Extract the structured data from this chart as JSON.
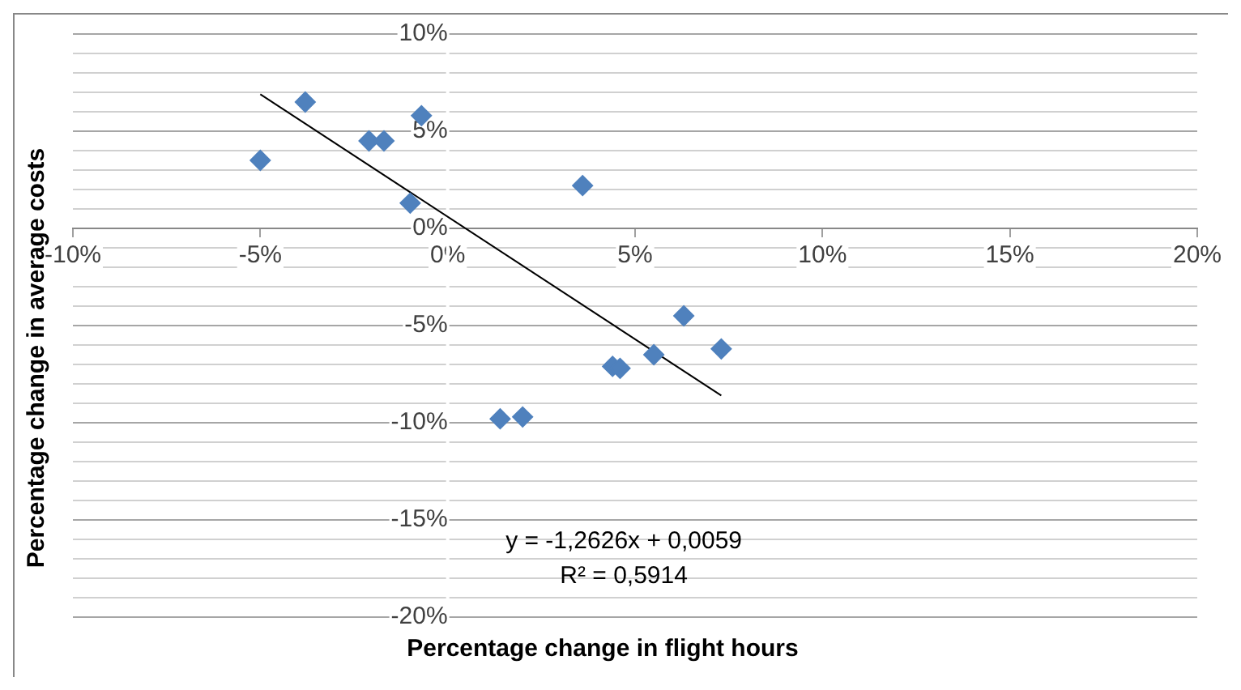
{
  "chart_data": {
    "type": "scatter",
    "xlabel": "Percentage change in flight hours",
    "ylabel": "Percentage change in average costs",
    "annotations": [
      "y = -1,2626x + 0,0059",
      "R² = 0,5914"
    ],
    "xlim": [
      -10,
      20
    ],
    "xticks": [
      {
        "value": -10,
        "label": "-10%"
      },
      {
        "value": -5,
        "label": "-5%"
      },
      {
        "value": 0,
        "label": "0%"
      },
      {
        "value": 5,
        "label": "5%"
      },
      {
        "value": 10,
        "label": "10%"
      },
      {
        "value": 15,
        "label": "15%"
      },
      {
        "value": 20,
        "label": "20%"
      }
    ],
    "ylim": [
      -20,
      10
    ],
    "yticks": [
      {
        "value": -20,
        "label": "-20%"
      },
      {
        "value": -19,
        "label": null
      },
      {
        "value": -18,
        "label": null
      },
      {
        "value": -17,
        "label": null
      },
      {
        "value": -16,
        "label": null
      },
      {
        "value": -15,
        "label": "-15%"
      },
      {
        "value": -14,
        "label": null
      },
      {
        "value": -13,
        "label": null
      },
      {
        "value": -12,
        "label": null
      },
      {
        "value": -11,
        "label": null
      },
      {
        "value": -10,
        "label": "-10%"
      },
      {
        "value": -9,
        "label": null
      },
      {
        "value": -8,
        "label": null
      },
      {
        "value": -7,
        "label": null
      },
      {
        "value": -6,
        "label": null
      },
      {
        "value": -5,
        "label": "-5%"
      },
      {
        "value": -4,
        "label": null
      },
      {
        "value": -3,
        "label": null
      },
      {
        "value": -2,
        "label": null
      },
      {
        "value": -1,
        "label": null
      },
      {
        "value": 0,
        "label": "0%"
      },
      {
        "value": 1,
        "label": null
      },
      {
        "value": 2,
        "label": null
      },
      {
        "value": 3,
        "label": null
      },
      {
        "value": 4,
        "label": null
      },
      {
        "value": 5,
        "label": "5%"
      },
      {
        "value": 6,
        "label": null
      },
      {
        "value": 7,
        "label": null
      },
      {
        "value": 8,
        "label": null
      },
      {
        "value": 9,
        "label": null
      },
      {
        "value": 10,
        "label": "10%"
      }
    ],
    "grid": "y",
    "legend": false,
    "marker": "diamond",
    "series": [
      {
        "color": "#4f81bd",
        "x": [
          -5.0,
          -3.8,
          -2.1,
          -1.7,
          -0.7,
          -1.0,
          3.6,
          1.4,
          2.0,
          4.4,
          4.6,
          5.5,
          6.3,
          7.3
        ],
        "values": [
          3.5,
          6.5,
          4.5,
          4.5,
          5.8,
          1.3,
          2.2,
          -9.8,
          -9.7,
          -7.1,
          -7.2,
          -6.5,
          -4.5,
          -6.2
        ]
      },
      {
        "type": "line",
        "color": "#000000",
        "marker": "none",
        "x": [
          -5.0,
          7.3
        ],
        "values": [
          6.9,
          -8.6
        ]
      }
    ]
  }
}
